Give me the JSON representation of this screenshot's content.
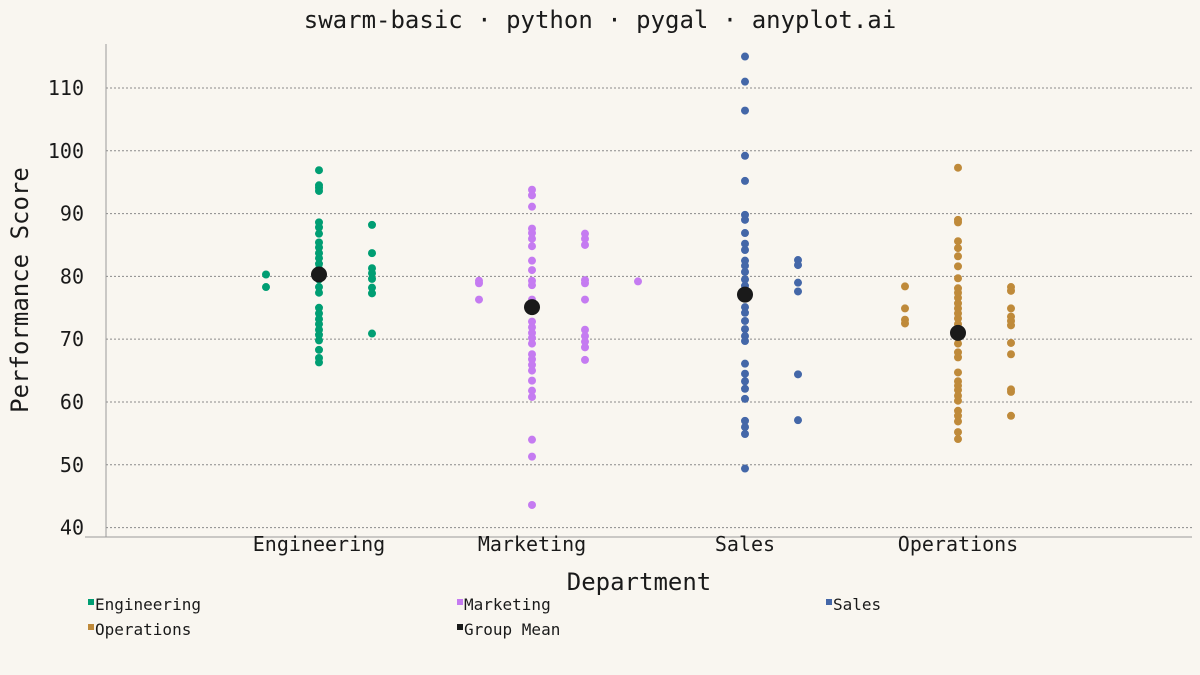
{
  "chart_data": {
    "type": "scatter",
    "title": "swarm-basic · python · pygal · anyplot.ai",
    "xlabel": "Department",
    "ylabel": "Performance Score",
    "categories": [
      "Engineering",
      "Marketing",
      "Sales",
      "Operations"
    ],
    "ylim": [
      38.5,
      117
    ],
    "yticks": [
      40,
      50,
      60,
      70,
      80,
      90,
      100,
      110
    ],
    "grid": true,
    "legend_position": "bottom",
    "series": [
      {
        "name": "Engineering",
        "color": "#009e73",
        "points": [
          [
            -0.25,
            80.3
          ],
          [
            -0.25,
            78.3
          ],
          [
            0,
            96.9
          ],
          [
            0,
            94.5
          ],
          [
            0,
            94.1
          ],
          [
            0,
            93.6
          ],
          [
            0,
            88.6
          ],
          [
            0,
            87.8
          ],
          [
            0,
            86.8
          ],
          [
            0,
            85.4
          ],
          [
            0,
            84.6
          ],
          [
            0,
            83.7
          ],
          [
            0,
            82.9
          ],
          [
            0,
            82.0
          ],
          [
            0,
            81.2
          ],
          [
            0,
            80.3
          ],
          [
            0,
            79.5
          ],
          [
            0,
            78.3
          ],
          [
            0,
            77.4
          ],
          [
            0,
            75.0
          ],
          [
            0,
            74.1
          ],
          [
            0,
            73.2
          ],
          [
            0,
            72.4
          ],
          [
            0,
            71.5
          ],
          [
            0,
            70.7
          ],
          [
            0,
            69.8
          ],
          [
            0,
            68.3
          ],
          [
            0,
            67.0
          ],
          [
            0,
            66.3
          ],
          [
            0.25,
            88.2
          ],
          [
            0.25,
            83.7
          ],
          [
            0.25,
            81.3
          ],
          [
            0.25,
            80.5
          ],
          [
            0.25,
            79.6
          ],
          [
            0.25,
            78.2
          ],
          [
            0.25,
            77.3
          ],
          [
            0.25,
            70.9
          ]
        ]
      },
      {
        "name": "Marketing",
        "color": "#c57bf1",
        "points": [
          [
            -0.25,
            79.3
          ],
          [
            -0.25,
            78.9
          ],
          [
            -0.25,
            76.3
          ],
          [
            0,
            93.8
          ],
          [
            0,
            92.9
          ],
          [
            0,
            91.1
          ],
          [
            0,
            87.6
          ],
          [
            0,
            86.9
          ],
          [
            0,
            86.0
          ],
          [
            0,
            84.8
          ],
          [
            0,
            82.5
          ],
          [
            0,
            81.0
          ],
          [
            0,
            79.3
          ],
          [
            0,
            78.6
          ],
          [
            0,
            76.3
          ],
          [
            0,
            75.1
          ],
          [
            0,
            74.6
          ],
          [
            0,
            72.8
          ],
          [
            0,
            71.9
          ],
          [
            0,
            71.0
          ],
          [
            0,
            70.2
          ],
          [
            0,
            69.3
          ],
          [
            0,
            67.6
          ],
          [
            0,
            66.8
          ],
          [
            0,
            65.9
          ],
          [
            0,
            65.0
          ],
          [
            0,
            63.4
          ],
          [
            0,
            61.8
          ],
          [
            0,
            60.8
          ],
          [
            0,
            54.0
          ],
          [
            0,
            51.3
          ],
          [
            0,
            43.6
          ],
          [
            0.25,
            86.8
          ],
          [
            0.25,
            86.0
          ],
          [
            0.25,
            85.0
          ],
          [
            0.25,
            79.4
          ],
          [
            0.25,
            78.9
          ],
          [
            0.25,
            76.3
          ],
          [
            0.25,
            71.5
          ],
          [
            0.25,
            70.5
          ],
          [
            0.25,
            69.6
          ],
          [
            0.25,
            68.7
          ],
          [
            0.25,
            66.7
          ],
          [
            0.5,
            79.2
          ]
        ]
      },
      {
        "name": "Sales",
        "color": "#4467a8",
        "points": [
          [
            0,
            115.0
          ],
          [
            0,
            111.0
          ],
          [
            0,
            106.4
          ],
          [
            0,
            99.2
          ],
          [
            0,
            95.2
          ],
          [
            0,
            89.8
          ],
          [
            0,
            89.0
          ],
          [
            0,
            86.9
          ],
          [
            0,
            85.2
          ],
          [
            0,
            84.2
          ],
          [
            0,
            82.5
          ],
          [
            0,
            81.7
          ],
          [
            0,
            80.7
          ],
          [
            0,
            79.5
          ],
          [
            0,
            78.5
          ],
          [
            0,
            77.7
          ],
          [
            0,
            76.8
          ],
          [
            0,
            75.1
          ],
          [
            0,
            74.2
          ],
          [
            0,
            72.9
          ],
          [
            0,
            71.6
          ],
          [
            0,
            70.5
          ],
          [
            0,
            69.7
          ],
          [
            0,
            66.1
          ],
          [
            0,
            64.5
          ],
          [
            0,
            63.3
          ],
          [
            0,
            62.1
          ],
          [
            0,
            60.5
          ],
          [
            0,
            57.0
          ],
          [
            0,
            56.0
          ],
          [
            0,
            54.9
          ],
          [
            0,
            49.4
          ],
          [
            0.25,
            82.6
          ],
          [
            0.25,
            81.8
          ],
          [
            0.25,
            79.0
          ],
          [
            0.25,
            77.6
          ],
          [
            0.25,
            64.4
          ],
          [
            0.25,
            57.1
          ]
        ]
      },
      {
        "name": "Operations",
        "color": "#bf8a3a",
        "points": [
          [
            -0.25,
            78.4
          ],
          [
            -0.25,
            74.9
          ],
          [
            -0.25,
            73.1
          ],
          [
            -0.25,
            72.5
          ],
          [
            0,
            97.3
          ],
          [
            0,
            89.0
          ],
          [
            0,
            88.6
          ],
          [
            0,
            85.6
          ],
          [
            0,
            84.5
          ],
          [
            0,
            83.2
          ],
          [
            0,
            81.6
          ],
          [
            0,
            79.7
          ],
          [
            0,
            78.1
          ],
          [
            0,
            77.4
          ],
          [
            0,
            76.6
          ],
          [
            0,
            75.7
          ],
          [
            0,
            74.9
          ],
          [
            0,
            74.1
          ],
          [
            0,
            73.3
          ],
          [
            0,
            72.4
          ],
          [
            0,
            71.6
          ],
          [
            0,
            70.7
          ],
          [
            0,
            69.3
          ],
          [
            0,
            67.9
          ],
          [
            0,
            67.1
          ],
          [
            0,
            64.7
          ],
          [
            0,
            63.3
          ],
          [
            0,
            62.6
          ],
          [
            0,
            61.9
          ],
          [
            0,
            61.0
          ],
          [
            0,
            60.2
          ],
          [
            0,
            58.6
          ],
          [
            0,
            57.8
          ],
          [
            0,
            56.9
          ],
          [
            0,
            55.2
          ],
          [
            0,
            54.1
          ],
          [
            0.25,
            78.3
          ],
          [
            0.25,
            77.7
          ],
          [
            0.25,
            74.9
          ],
          [
            0.25,
            73.6
          ],
          [
            0.25,
            72.9
          ],
          [
            0.25,
            72.2
          ],
          [
            0.25,
            69.4
          ],
          [
            0.25,
            67.6
          ],
          [
            0.25,
            62.0
          ],
          [
            0.25,
            61.6
          ],
          [
            0.25,
            57.8
          ]
        ]
      },
      {
        "name": "Group Mean",
        "color": "#1a1a1a",
        "points": [
          [
            0,
            80.3
          ],
          [
            0,
            75.1
          ],
          [
            0,
            77.1
          ],
          [
            0,
            71.0
          ]
        ],
        "point_category": [
          0,
          1,
          2,
          3
        ]
      }
    ]
  }
}
